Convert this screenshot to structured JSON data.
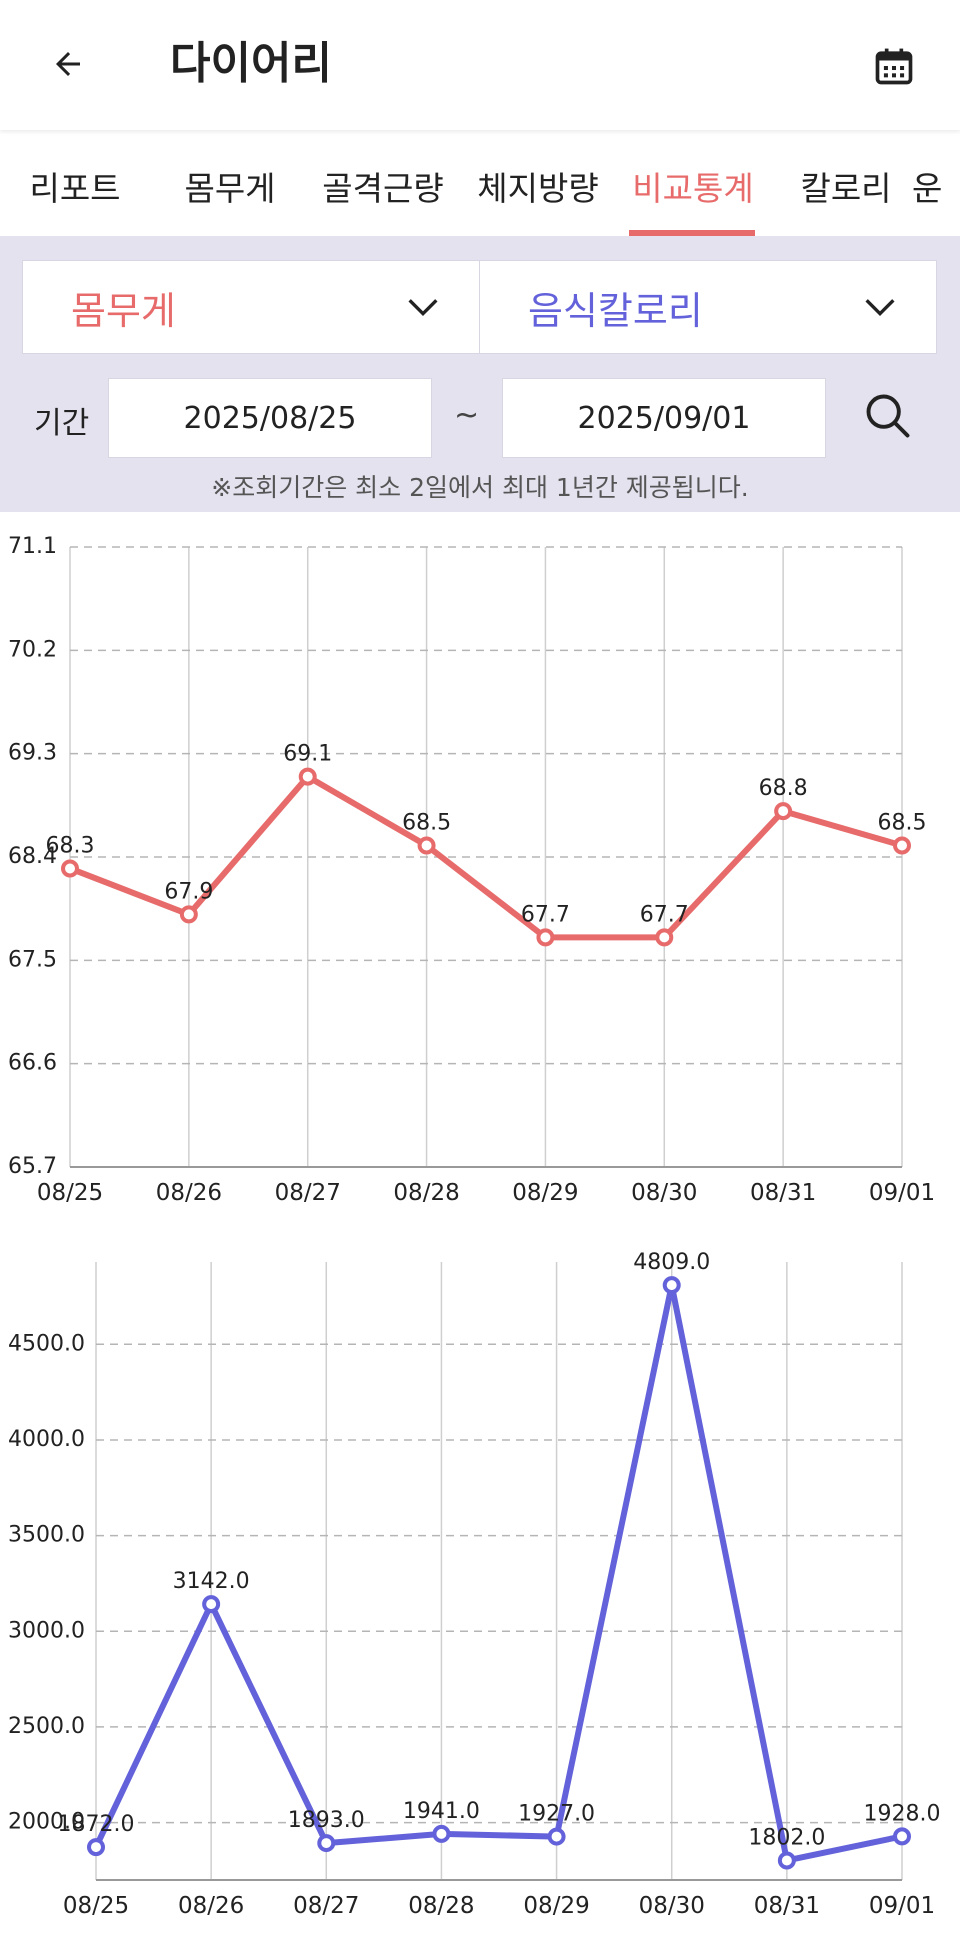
{
  "appbar": {
    "title": "다이어리",
    "back_icon": "arrow-left-icon",
    "calendar_icon": "calendar-icon"
  },
  "tabs": [
    {
      "label": "리포트",
      "active": false
    },
    {
      "label": "몸무게",
      "active": false
    },
    {
      "label": "골격근량",
      "active": false
    },
    {
      "label": "체지방량",
      "active": false
    },
    {
      "label": "비교통계",
      "active": true
    },
    {
      "label": "칼로리",
      "active": false
    },
    {
      "label": "운",
      "active": false
    }
  ],
  "filter": {
    "left_select": "몸무게",
    "right_select": "음식칼로리",
    "period_label": "기간",
    "start_date": "2025/08/25",
    "end_date": "2025/09/01",
    "separator": "~",
    "note": "※조회기간은 최소 2일에서 최대 1년간 제공됩니다.",
    "search_icon": "search-icon"
  },
  "colors": {
    "accent": "#e86b6b",
    "secondary": "#6362da",
    "filter_bg": "#e4e2ee"
  },
  "chart_data": [
    {
      "type": "line",
      "x": [
        "08/25",
        "08/26",
        "08/27",
        "08/28",
        "08/29",
        "08/30",
        "08/31",
        "09/01"
      ],
      "series": [
        {
          "values": [
            68.3,
            67.9,
            69.1,
            68.5,
            67.7,
            67.7,
            68.8,
            68.5
          ],
          "color": "#e86b6b"
        }
      ],
      "point_labels": [
        "68.3",
        "67.9",
        "69.1",
        "68.5",
        "67.7",
        "67.7",
        "68.8",
        "68.5"
      ],
      "ylim": [
        65.7,
        71.1
      ],
      "yticks": [
        "71.1",
        "70.2",
        "69.3",
        "68.4",
        "67.5",
        "66.6",
        "65.7"
      ],
      "grid": true
    },
    {
      "type": "line",
      "x": [
        "08/25",
        "08/26",
        "08/27",
        "08/28",
        "08/29",
        "08/30",
        "08/31",
        "09/01"
      ],
      "series": [
        {
          "values": [
            1872,
            3142,
            1893,
            1941,
            1927,
            4809,
            1802,
            1928
          ],
          "color": "#6362da"
        }
      ],
      "point_labels": [
        "1872.0",
        "3142.0",
        "1893.0",
        "1941.0",
        "1927.0",
        "4809.0",
        "1802.0",
        "1928.0"
      ],
      "ylim": [
        1700,
        4930
      ],
      "yticks": [
        "4500.0",
        "4000.0",
        "3500.0",
        "3000.0",
        "2500.0",
        "2000.0"
      ],
      "grid": true
    }
  ]
}
